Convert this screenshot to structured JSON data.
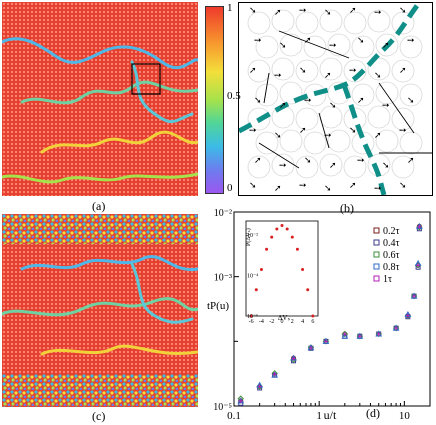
{
  "panels": {
    "a": {
      "label": "(a)"
    },
    "b": {
      "label": "(b)"
    },
    "c": {
      "label": "(c)"
    },
    "d": {
      "label": "(d)"
    }
  },
  "colorbar": {
    "ticks": [
      "1",
      "0.5",
      "0"
    ],
    "colors": [
      "#ef3a2b",
      "#f79b2e",
      "#f3df3a",
      "#a6e24b",
      "#52d696",
      "#3bbbe6",
      "#6f7bef",
      "#9b57ef"
    ]
  },
  "chart_data": {
    "type": "scatter",
    "xscale": "log",
    "yscale": "log",
    "xlabel": "u/t",
    "ylabel": "tP(u)",
    "xticks": [
      "0.1",
      "1",
      "10"
    ],
    "yticks": [
      "10⁻⁵",
      "10⁻³",
      "10⁻²"
    ],
    "xlim": [
      0.1,
      20
    ],
    "ylim": [
      1e-05,
      0.01
    ],
    "legend": [
      "0.2τ",
      "0.4τ",
      "0.6τ",
      "0.8τ",
      "1τ"
    ],
    "legend_colors": [
      "#7b1c1c",
      "#3a3a8f",
      "#3b8f3b",
      "#2c6bc9",
      "#b01eb0"
    ],
    "series": [
      {
        "name": "0.2τ",
        "x": [
          0.12,
          0.2,
          0.3,
          0.5,
          0.8,
          1.2,
          2,
          3,
          5,
          8,
          11,
          13,
          14.5,
          15
        ],
        "y": [
          1.2e-05,
          2e-05,
          3e-05,
          5.5e-05,
          8e-05,
          0.0001,
          0.00013,
          0.00012,
          0.00013,
          0.00016,
          0.00025,
          0.0005,
          0.0015,
          0.006
        ]
      },
      {
        "name": "0.4τ",
        "x": [
          0.12,
          0.2,
          0.3,
          0.5,
          0.8,
          1.2,
          2,
          3,
          5,
          8,
          11,
          13,
          14.5,
          15
        ],
        "y": [
          1.1e-05,
          1.9e-05,
          3e-05,
          5e-05,
          7.8e-05,
          0.0001,
          0.00012,
          0.00012,
          0.00013,
          0.00016,
          0.00024,
          0.0005,
          0.0014,
          0.0055
        ]
      },
      {
        "name": "0.6τ",
        "x": [
          0.12,
          0.2,
          0.3,
          0.5,
          0.8,
          1.2,
          2,
          3,
          5,
          8,
          11,
          13,
          14.5,
          15
        ],
        "y": [
          1.3e-05,
          2e-05,
          3.2e-05,
          5.2e-05,
          8e-05,
          0.0001,
          0.00013,
          0.00012,
          0.00013,
          0.00016,
          0.00025,
          0.0005,
          0.0015,
          0.0058
        ]
      },
      {
        "name": "0.8τ",
        "x": [
          0.12,
          0.2,
          0.3,
          0.5,
          0.8,
          1.2,
          2,
          3,
          5,
          8,
          11,
          13,
          14.5,
          15
        ],
        "y": [
          1.2e-05,
          2.1e-05,
          3e-05,
          5.5e-05,
          8e-05,
          0.0001,
          0.00012,
          0.00012,
          0.00013,
          0.00016,
          0.00026,
          0.0005,
          0.0016,
          0.006
        ]
      },
      {
        "name": "1τ",
        "x": [
          0.12,
          0.2,
          0.3,
          0.5,
          0.8,
          1.2,
          2,
          3,
          5,
          8,
          11,
          13,
          14.5,
          15
        ],
        "y": [
          1.2e-05,
          2e-05,
          3.1e-05,
          5.4e-05,
          7.9e-05,
          0.0001,
          0.00013,
          0.00012,
          0.00013,
          0.00016,
          0.00025,
          0.0005,
          0.0015,
          0.0059
        ]
      }
    ]
  },
  "inset": {
    "type": "scatter",
    "xlabel": "ΔVₛ",
    "ylabel": "P(ΔVₛ)",
    "xticks": [
      "-6",
      "-4",
      "-2",
      "0",
      "2",
      "4",
      "6"
    ],
    "yticks": [
      "10⁻⁶",
      "10⁻⁴",
      "10⁻²"
    ],
    "x": [
      -6,
      -5,
      -4,
      -3,
      -2,
      -1,
      0,
      1,
      2,
      3,
      4,
      5,
      6
    ],
    "y": [
      1e-06,
      2e-05,
      0.0002,
      0.002,
      0.008,
      0.02,
      0.03,
      0.02,
      0.008,
      0.002,
      0.0002,
      2e-05,
      1e-06
    ]
  }
}
